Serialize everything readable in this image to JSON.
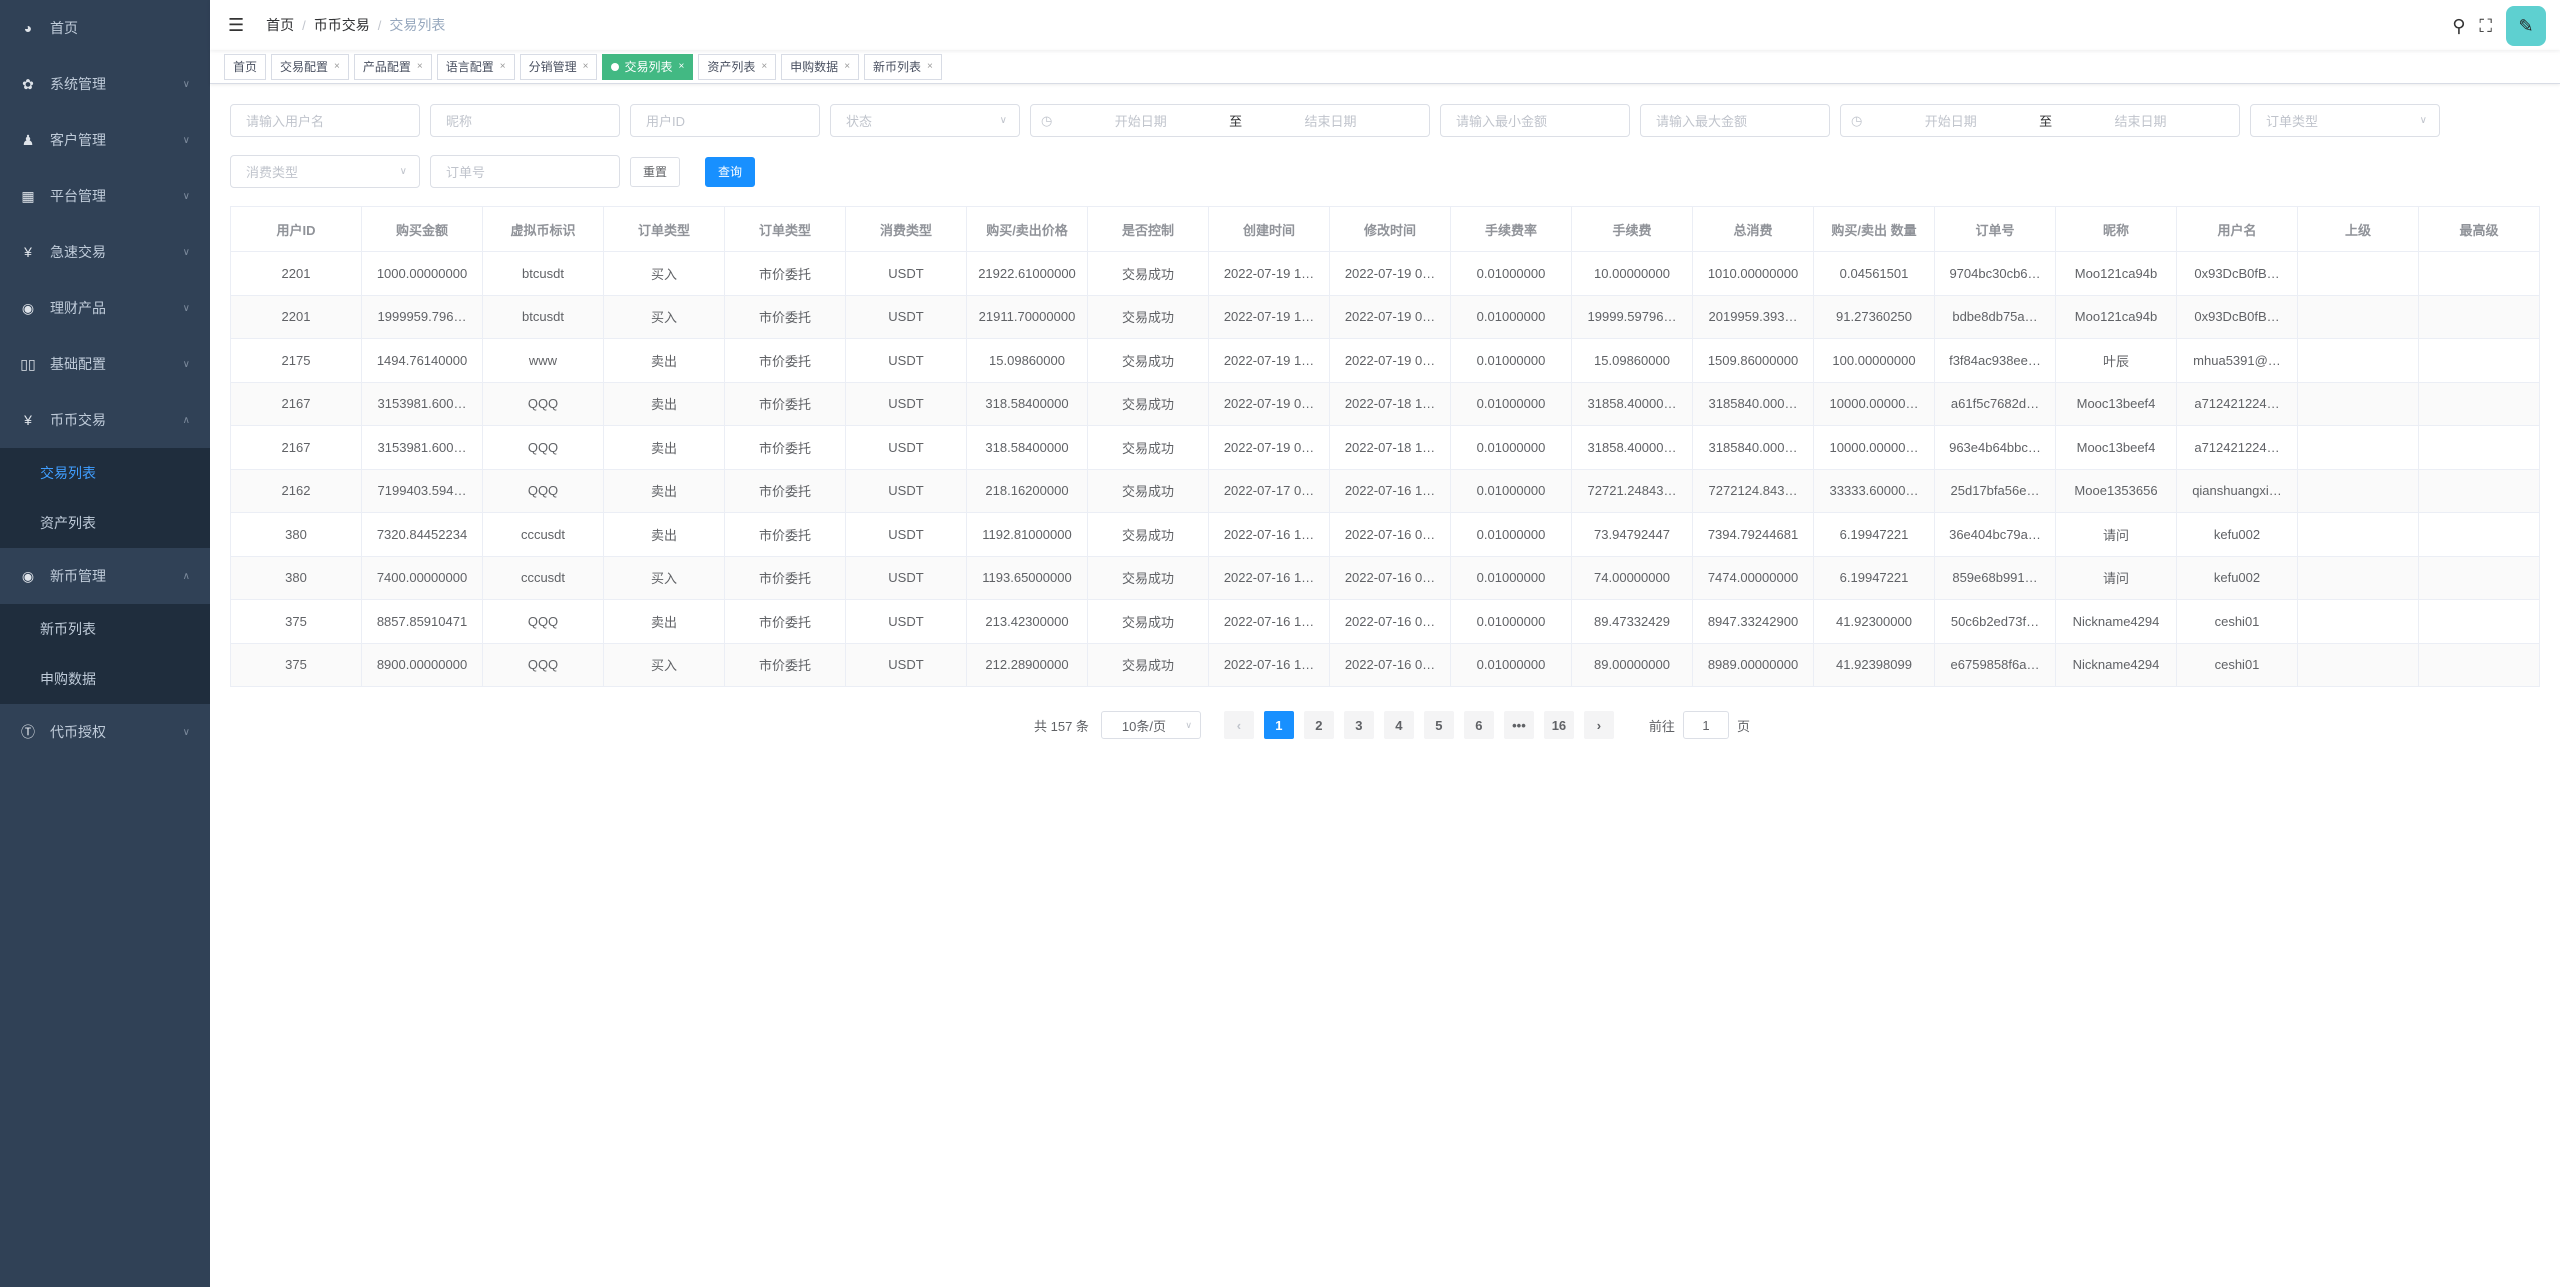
{
  "sidebar": {
    "items": [
      {
        "label": "首页",
        "icon": "dashboard-icon",
        "chev": ""
      },
      {
        "label": "系统管理",
        "icon": "gear-icon",
        "chev": "∨"
      },
      {
        "label": "客户管理",
        "icon": "user-icon",
        "chev": "∨"
      },
      {
        "label": "平台管理",
        "icon": "grid-icon",
        "chev": "∨"
      },
      {
        "label": "急速交易",
        "icon": "yen-icon",
        "chev": "∨"
      },
      {
        "label": "理财产品",
        "icon": "ring-icon",
        "chev": "∨"
      },
      {
        "label": "基础配置",
        "icon": "book-icon",
        "chev": "∨"
      },
      {
        "label": "币币交易",
        "icon": "yen-icon",
        "chev": "∧"
      },
      {
        "label": "新币管理",
        "icon": "ring-icon",
        "chev": "∧"
      },
      {
        "label": "代币授权",
        "icon": "token-icon",
        "chev": "∨"
      }
    ],
    "sub_coin": [
      "交易列表",
      "资产列表"
    ],
    "sub_new": [
      "新币列表",
      "申购数据"
    ]
  },
  "header": {
    "breadcrumb": [
      "首页",
      "币币交易",
      "交易列表"
    ]
  },
  "tags": [
    {
      "label": "首页"
    },
    {
      "label": "交易配置"
    },
    {
      "label": "产品配置"
    },
    {
      "label": "语言配置"
    },
    {
      "label": "分销管理"
    },
    {
      "label": "交易列表"
    },
    {
      "label": "资产列表"
    },
    {
      "label": "申购数据"
    },
    {
      "label": "新币列表"
    }
  ],
  "filters": {
    "username": "请输入用户名",
    "nickname": "昵称",
    "user_id": "用户ID",
    "status": "状态",
    "start": "开始日期",
    "to": "至",
    "end": "结束日期",
    "min": "请输入最小金额",
    "max": "请输入最大金额",
    "order_type": "订单类型",
    "consume_type": "消费类型",
    "order_no": "订单号",
    "reset": "重置",
    "query": "查询"
  },
  "table": {
    "headers": [
      "用户ID",
      "购买金额",
      "虚拟币标识",
      "订单类型",
      "订单类型",
      "消费类型",
      "购买/卖出价格",
      "是否控制",
      "创建时间",
      "修改时间",
      "手续费率",
      "手续费",
      "总消费",
      "购买/卖出 数量",
      "订单号",
      "昵称",
      "用户名",
      "上级",
      "最高级"
    ],
    "rows": [
      [
        "2201",
        "1000.00000000",
        "btcusdt",
        "买入",
        "市价委托",
        "USDT",
        "21922.61000000",
        "交易成功",
        "2022-07-19 1…",
        "2022-07-19 0…",
        "0.01000000",
        "10.00000000",
        "1010.00000000",
        "0.04561501",
        "9704bc30cb6…",
        "Moo121ca94b",
        "0x93DcB0fB…",
        "",
        ""
      ],
      [
        "2201",
        "1999959.796…",
        "btcusdt",
        "买入",
        "市价委托",
        "USDT",
        "21911.70000000",
        "交易成功",
        "2022-07-19 1…",
        "2022-07-19 0…",
        "0.01000000",
        "19999.59796…",
        "2019959.393…",
        "91.27360250",
        "bdbe8db75a…",
        "Moo121ca94b",
        "0x93DcB0fB…",
        "",
        ""
      ],
      [
        "2175",
        "1494.76140000",
        "www",
        "卖出",
        "市价委托",
        "USDT",
        "15.09860000",
        "交易成功",
        "2022-07-19 1…",
        "2022-07-19 0…",
        "0.01000000",
        "15.09860000",
        "1509.86000000",
        "100.00000000",
        "f3f84ac938ee…",
        "叶辰",
        "mhua5391@…",
        "",
        ""
      ],
      [
        "2167",
        "3153981.600…",
        "QQQ",
        "卖出",
        "市价委托",
        "USDT",
        "318.58400000",
        "交易成功",
        "2022-07-19 0…",
        "2022-07-18 1…",
        "0.01000000",
        "31858.40000…",
        "3185840.000…",
        "10000.00000…",
        "a61f5c7682d…",
        "Mooc13beef4",
        "a712421224…",
        "",
        ""
      ],
      [
        "2167",
        "3153981.600…",
        "QQQ",
        "卖出",
        "市价委托",
        "USDT",
        "318.58400000",
        "交易成功",
        "2022-07-19 0…",
        "2022-07-18 1…",
        "0.01000000",
        "31858.40000…",
        "3185840.000…",
        "10000.00000…",
        "963e4b64bbc…",
        "Mooc13beef4",
        "a712421224…",
        "",
        ""
      ],
      [
        "2162",
        "7199403.594…",
        "QQQ",
        "卖出",
        "市价委托",
        "USDT",
        "218.16200000",
        "交易成功",
        "2022-07-17 0…",
        "2022-07-16 1…",
        "0.01000000",
        "72721.24843…",
        "7272124.843…",
        "33333.60000…",
        "25d17bfa56e…",
        "Mooe1353656",
        "qianshuangxi…",
        "",
        ""
      ],
      [
        "380",
        "7320.84452234",
        "cccusdt",
        "卖出",
        "市价委托",
        "USDT",
        "1192.81000000",
        "交易成功",
        "2022-07-16 1…",
        "2022-07-16 0…",
        "0.01000000",
        "73.94792447",
        "7394.79244681",
        "6.19947221",
        "36e404bc79a…",
        "请问",
        "kefu002",
        "",
        ""
      ],
      [
        "380",
        "7400.00000000",
        "cccusdt",
        "买入",
        "市价委托",
        "USDT",
        "1193.65000000",
        "交易成功",
        "2022-07-16 1…",
        "2022-07-16 0…",
        "0.01000000",
        "74.00000000",
        "7474.00000000",
        "6.19947221",
        "859e68b991…",
        "请问",
        "kefu002",
        "",
        ""
      ],
      [
        "375",
        "8857.85910471",
        "QQQ",
        "卖出",
        "市价委托",
        "USDT",
        "213.42300000",
        "交易成功",
        "2022-07-16 1…",
        "2022-07-16 0…",
        "0.01000000",
        "89.47332429",
        "8947.33242900",
        "41.92300000",
        "50c6b2ed73f…",
        "Nickname4294",
        "ceshi01",
        "",
        ""
      ],
      [
        "375",
        "8900.00000000",
        "QQQ",
        "买入",
        "市价委托",
        "USDT",
        "212.28900000",
        "交易成功",
        "2022-07-16 1…",
        "2022-07-16 0…",
        "0.01000000",
        "89.00000000",
        "8989.00000000",
        "41.92398099",
        "e6759858f6a…",
        "Nickname4294",
        "ceshi01",
        "",
        ""
      ]
    ]
  },
  "pagination": {
    "total": "共 157 条",
    "page_size": "10条/页",
    "prev": "‹",
    "pages": [
      "1",
      "2",
      "3",
      "4",
      "5",
      "6",
      "•••",
      "16"
    ],
    "next": "›",
    "goto_label": "前往",
    "goto_value": "1",
    "goto_suffix": "页",
    "current": 1
  },
  "colors": {
    "sidebar": "#304156",
    "accent": "#1890ff",
    "active_tag": "#42b983",
    "buy": "#67c23a",
    "sell": "#f56c6c"
  }
}
